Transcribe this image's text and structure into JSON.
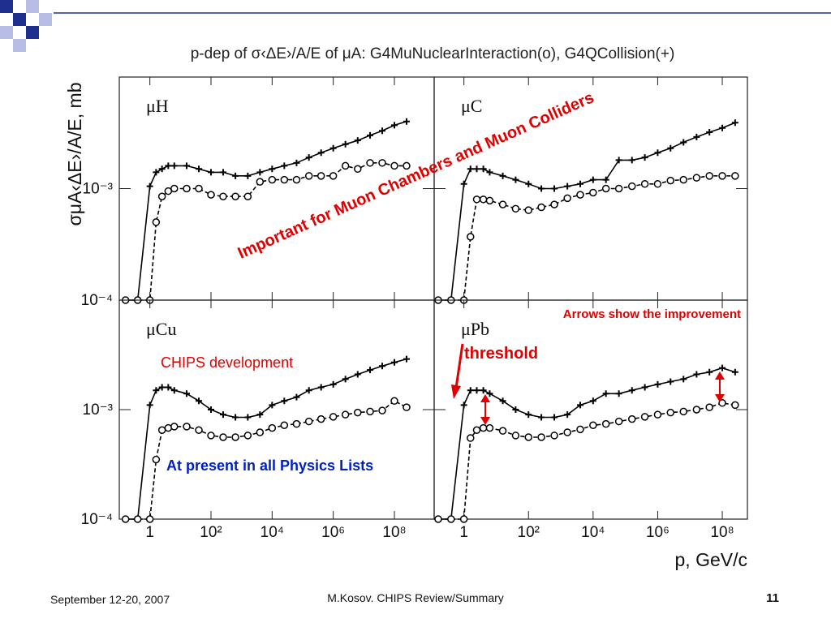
{
  "slide": {
    "plot_title": "p-dep of σ‹ΔE›/A/E of μA: G4MuNuclearInteraction(o), G4QCollision(+)",
    "y_label": "σμA‹ΔE›/A/E, mb",
    "x_label": "p, GeV/c",
    "annotations": [
      "Important for Muon Chambers and Muon Colliders",
      "Arrows show the improvement",
      "threshold",
      "CHIPS development",
      "At present in all Physics Lists"
    ],
    "footer_date": "September 12-20, 2007",
    "footer_center": "M.Kosov. CHIPS Review/Summary",
    "page_number": "11"
  },
  "chart_data": [
    {
      "type": "line",
      "title": "μH",
      "log_x": true,
      "log_y": true,
      "x": [
        0.16,
        0.4,
        1,
        1.6,
        2.5,
        4,
        6.3,
        16,
        40,
        100,
        250,
        630,
        1600,
        4000,
        10000,
        25000,
        63000,
        160000,
        400000,
        1000000,
        2500000,
        6300000,
        16000000,
        40000000,
        100000000,
        250000000
      ],
      "xlim": [
        0.1,
        2000000000
      ],
      "xticks": [
        1,
        {
          "value": 100,
          "label": "10²"
        },
        {
          "value": 10000,
          "label": "10⁴"
        },
        {
          "value": 1000000,
          "label": "10⁶"
        },
        {
          "value": 100000000,
          "label": "10⁸"
        }
      ],
      "ylim": [
        0.0001,
        0.01
      ],
      "yticks": [
        {
          "value": 0.0001,
          "label": "10⁻⁴"
        },
        {
          "value": 0.001,
          "label": "10⁻³"
        }
      ],
      "series": [
        {
          "color": "#000000",
          "marker": "plus",
          "line_style": "solid",
          "values": [
            0.0001,
            0.0001,
            0.00105,
            0.0014,
            0.0015,
            0.0016,
            0.0016,
            0.0016,
            0.0015,
            0.0014,
            0.0014,
            0.0013,
            0.0013,
            0.0014,
            0.0015,
            0.0016,
            0.0017,
            0.0019,
            0.0021,
            0.0023,
            0.0025,
            0.0027,
            0.003,
            0.0033,
            0.0037,
            0.004
          ]
        },
        {
          "color": "#000000",
          "marker": "circle",
          "line_style": "dashed",
          "values": [
            0.0001,
            0.0001,
            0.0001,
            0.0005,
            0.00085,
            0.00095,
            0.001,
            0.001,
            0.001,
            0.00088,
            0.00085,
            0.00085,
            0.00085,
            0.00115,
            0.0012,
            0.0012,
            0.0012,
            0.0013,
            0.0013,
            0.0013,
            0.0016,
            0.0015,
            0.0017,
            0.0017,
            0.0016,
            0.0016
          ]
        }
      ]
    },
    {
      "type": "line",
      "title": "μC",
      "log_x": true,
      "log_y": true,
      "x": [
        0.16,
        0.4,
        1,
        1.6,
        2.5,
        4,
        6.3,
        16,
        40,
        100,
        250,
        630,
        1600,
        4000,
        10000,
        25000,
        63000,
        160000,
        400000,
        1000000,
        2500000,
        6300000,
        16000000,
        40000000,
        100000000,
        250000000
      ],
      "xlim": [
        0.12,
        600000000
      ],
      "xticks": [
        1,
        {
          "value": 100,
          "label": "10²"
        },
        {
          "value": 10000,
          "label": "10⁴"
        },
        {
          "value": 1000000,
          "label": "10⁶"
        },
        {
          "value": 100000000,
          "label": "10⁸"
        }
      ],
      "ylim": [
        0.0001,
        0.01
      ],
      "yticks": [
        {
          "value": 0.0001,
          "label": "10⁻⁴"
        },
        {
          "value": 0.001,
          "label": "10⁻³"
        }
      ],
      "series": [
        {
          "color": "#000000",
          "marker": "plus",
          "line_style": "solid",
          "values": [
            0.0001,
            0.0001,
            0.0011,
            0.0015,
            0.0015,
            0.0015,
            0.0014,
            0.0013,
            0.0012,
            0.0011,
            0.001,
            0.001,
            0.00105,
            0.0011,
            0.0012,
            0.0012,
            0.0018,
            0.0018,
            0.0019,
            0.0021,
            0.0023,
            0.0026,
            0.0029,
            0.0032,
            0.0035,
            0.0039
          ]
        },
        {
          "color": "#000000",
          "marker": "circle",
          "line_style": "dashed",
          "values": [
            0.0001,
            0.0001,
            0.0001,
            0.00037,
            0.0008,
            0.0008,
            0.00078,
            0.00072,
            0.00066,
            0.00064,
            0.00068,
            0.00072,
            0.00082,
            0.00088,
            0.00092,
            0.001,
            0.001,
            0.00105,
            0.0011,
            0.0011,
            0.00118,
            0.0012,
            0.00125,
            0.0013,
            0.0013,
            0.0013
          ]
        }
      ]
    },
    {
      "type": "line",
      "title": "μCu",
      "log_x": true,
      "log_y": true,
      "x": [
        0.16,
        0.4,
        1,
        1.6,
        2.5,
        4,
        6.3,
        16,
        40,
        100,
        250,
        630,
        1600,
        4000,
        10000,
        25000,
        63000,
        160000,
        400000,
        1000000,
        2500000,
        6300000,
        16000000,
        40000000,
        100000000,
        250000000
      ],
      "xlim": [
        0.1,
        2000000000
      ],
      "xticks": [
        1,
        {
          "value": 100,
          "label": "10²"
        },
        {
          "value": 10000,
          "label": "10⁴"
        },
        {
          "value": 1000000,
          "label": "10⁶"
        },
        {
          "value": 100000000,
          "label": "10⁸"
        }
      ],
      "ylim": [
        0.0001,
        0.01
      ],
      "yticks": [
        {
          "value": 0.0001,
          "label": "10⁻⁴"
        },
        {
          "value": 0.001,
          "label": "10⁻³"
        }
      ],
      "series": [
        {
          "color": "#000000",
          "marker": "plus",
          "line_style": "solid",
          "values": [
            0.0001,
            0.0001,
            0.0011,
            0.0015,
            0.0016,
            0.0016,
            0.0015,
            0.0014,
            0.0012,
            0.001,
            0.0009,
            0.00085,
            0.00085,
            0.0009,
            0.0011,
            0.0012,
            0.0013,
            0.0015,
            0.0016,
            0.0017,
            0.0019,
            0.0021,
            0.0023,
            0.0025,
            0.0027,
            0.0029
          ]
        },
        {
          "color": "#000000",
          "marker": "circle",
          "line_style": "dashed",
          "values": [
            0.0001,
            0.0001,
            0.0001,
            0.00035,
            0.00065,
            0.00068,
            0.0007,
            0.0007,
            0.00065,
            0.00058,
            0.00056,
            0.00056,
            0.00058,
            0.00062,
            0.00068,
            0.00072,
            0.00074,
            0.00078,
            0.00082,
            0.00086,
            0.0009,
            0.00094,
            0.00096,
            0.00098,
            0.0012,
            0.00105
          ]
        }
      ]
    },
    {
      "type": "line",
      "title": "μPb",
      "log_x": true,
      "log_y": true,
      "x": [
        0.16,
        0.4,
        1,
        1.6,
        2.5,
        4,
        6.3,
        16,
        40,
        100,
        250,
        630,
        1600,
        4000,
        10000,
        25000,
        63000,
        160000,
        400000,
        1000000,
        2500000,
        6300000,
        16000000,
        40000000,
        100000000,
        250000000
      ],
      "xlim": [
        0.12,
        600000000
      ],
      "xticks": [
        1,
        {
          "value": 100,
          "label": "10²"
        },
        {
          "value": 10000,
          "label": "10⁴"
        },
        {
          "value": 1000000,
          "label": "10⁶"
        },
        {
          "value": 100000000,
          "label": "10⁸"
        }
      ],
      "ylim": [
        0.0001,
        0.01
      ],
      "yticks": [
        {
          "value": 0.0001,
          "label": "10⁻⁴"
        },
        {
          "value": 0.001,
          "label": "10⁻³"
        }
      ],
      "series": [
        {
          "color": "#000000",
          "marker": "plus",
          "line_style": "solid",
          "values": [
            0.0001,
            0.0001,
            0.0011,
            0.0015,
            0.0015,
            0.0015,
            0.0014,
            0.0012,
            0.001,
            0.0009,
            0.00085,
            0.00085,
            0.0009,
            0.0011,
            0.0012,
            0.0014,
            0.0014,
            0.0015,
            0.0016,
            0.0017,
            0.0018,
            0.0019,
            0.0021,
            0.0022,
            0.0024,
            0.0022
          ]
        },
        {
          "color": "#000000",
          "marker": "circle",
          "line_style": "dashed",
          "values": [
            0.0001,
            0.0001,
            0.0001,
            0.00055,
            0.00065,
            0.00068,
            0.00068,
            0.00064,
            0.00058,
            0.00056,
            0.00056,
            0.00058,
            0.00062,
            0.00066,
            0.00072,
            0.00074,
            0.00078,
            0.00082,
            0.00086,
            0.0009,
            0.00094,
            0.00096,
            0.001,
            0.00105,
            0.00115,
            0.0011
          ]
        }
      ]
    }
  ]
}
